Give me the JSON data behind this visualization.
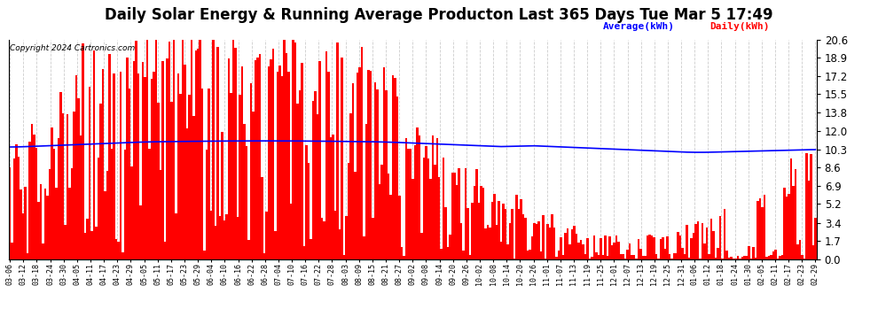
{
  "title": "Daily Solar Energy & Running Average Producton Last 365 Days Tue Mar 5 17:49",
  "copyright": "Copyright 2024 Cartronics.com",
  "ylabel_right_ticks": [
    0.0,
    1.7,
    3.4,
    5.2,
    6.9,
    8.6,
    10.3,
    12.0,
    13.8,
    15.5,
    17.2,
    18.9,
    20.6
  ],
  "ylim": [
    0.0,
    20.6
  ],
  "legend_avg_label": "Average(kWh)",
  "legend_daily_label": "Daily(kWh)",
  "avg_color": "#0000ff",
  "daily_color": "#ff0000",
  "background_color": "#ffffff",
  "grid_color": "#aaaaaa",
  "title_fontsize": 12,
  "x_tick_labels": [
    "03-06",
    "03-12",
    "03-18",
    "03-24",
    "03-30",
    "04-05",
    "04-11",
    "04-17",
    "04-23",
    "04-29",
    "05-05",
    "05-11",
    "05-17",
    "05-23",
    "05-29",
    "06-04",
    "06-10",
    "06-16",
    "06-22",
    "06-28",
    "07-04",
    "07-10",
    "07-16",
    "07-22",
    "07-28",
    "08-03",
    "08-09",
    "08-15",
    "08-21",
    "08-27",
    "09-02",
    "09-08",
    "09-14",
    "09-20",
    "09-26",
    "10-02",
    "10-08",
    "10-14",
    "10-20",
    "10-26",
    "11-01",
    "11-07",
    "11-13",
    "11-19",
    "11-25",
    "12-01",
    "12-07",
    "12-13",
    "12-19",
    "12-25",
    "12-31",
    "01-06",
    "01-12",
    "01-18",
    "01-24",
    "01-30",
    "02-05",
    "02-11",
    "02-17",
    "02-23",
    "02-29"
  ],
  "avg_line_values": [
    10.5,
    10.52,
    10.54,
    10.56,
    10.58,
    10.6,
    10.62,
    10.65,
    10.68,
    10.7,
    10.72,
    10.74,
    10.76,
    10.78,
    10.8,
    10.82,
    10.84,
    10.86,
    10.88,
    10.9,
    10.92,
    10.94,
    10.95,
    10.96,
    10.97,
    10.98,
    10.99,
    11.0,
    11.01,
    11.02,
    11.03,
    11.04,
    11.05,
    11.06,
    11.07,
    11.07,
    11.07,
    11.07,
    11.07,
    11.07,
    11.06,
    11.05,
    11.04,
    11.03,
    11.02,
    11.01,
    11.0,
    10.99,
    10.98,
    10.97,
    10.96,
    10.95,
    10.94,
    10.93,
    10.92,
    10.91,
    10.9,
    10.89,
    10.88,
    10.87,
    10.86,
    10.84,
    10.82,
    10.8,
    10.78,
    10.76,
    10.74,
    10.72,
    10.7,
    10.68,
    10.66,
    10.64,
    10.62,
    10.6,
    10.58,
    10.56,
    10.54,
    10.52,
    10.5,
    10.48,
    10.46,
    10.44,
    10.42,
    10.4,
    10.38,
    10.36,
    10.34,
    10.32,
    10.3,
    10.28,
    10.26,
    10.24,
    10.22,
    10.2,
    10.18,
    10.16,
    10.14,
    10.12,
    10.1,
    10.08,
    10.06,
    10.04,
    10.02,
    10.0,
    9.98,
    9.96,
    9.94,
    9.92,
    9.9,
    9.88,
    9.87,
    9.86,
    9.85,
    9.84,
    9.83,
    9.82,
    9.82,
    9.82,
    9.82,
    9.82,
    9.83,
    9.84,
    9.85,
    9.86,
    9.87,
    9.88,
    9.89,
    9.9,
    9.91,
    9.92,
    9.93,
    9.94,
    9.95,
    9.96,
    9.97,
    9.98,
    9.99,
    10.0,
    10.01,
    10.02,
    10.03,
    10.04,
    10.05,
    10.06,
    10.07,
    10.08,
    10.09,
    10.1,
    10.11,
    10.12,
    10.13,
    10.14,
    10.15,
    10.16,
    10.17,
    10.18,
    10.19,
    10.2,
    10.21,
    10.22,
    10.23,
    10.24,
    10.25,
    10.26,
    10.27,
    10.28,
    10.29,
    10.3,
    10.3,
    10.3,
    10.3,
    10.3,
    10.3,
    10.3,
    10.3,
    10.3,
    10.3,
    10.3,
    10.3,
    10.3,
    10.3,
    10.3,
    10.3,
    10.3,
    10.3,
    10.3,
    10.3,
    10.3,
    10.3,
    10.3,
    10.3,
    10.3,
    10.3,
    10.28,
    10.26,
    10.24,
    10.22,
    10.2,
    10.18,
    10.16,
    10.14,
    10.12,
    10.1,
    10.08,
    10.06,
    10.04,
    10.02,
    10.0,
    9.98,
    9.96,
    9.94,
    9.92,
    9.9,
    9.88,
    9.86,
    9.84,
    9.82,
    9.8,
    9.78,
    9.76,
    9.74,
    9.72,
    9.7,
    9.68,
    9.66,
    9.64,
    9.62,
    9.6,
    9.58,
    9.56,
    9.54,
    9.52,
    9.5,
    9.48,
    9.46,
    9.44,
    9.42,
    9.4,
    9.38,
    9.36,
    9.34,
    9.32,
    9.3,
    9.28,
    9.26,
    9.24,
    9.22,
    9.2,
    9.18,
    9.16,
    9.14,
    9.12,
    9.1,
    9.08,
    9.06,
    9.04,
    9.02,
    9.0,
    8.98,
    8.96,
    8.94,
    8.92,
    8.9,
    8.88,
    8.87,
    8.87,
    8.87,
    8.87,
    8.87,
    8.87,
    8.87,
    8.87,
    8.87,
    8.87,
    8.87,
    8.87,
    8.87,
    8.87,
    8.87,
    8.87,
    8.87,
    8.87,
    8.87,
    8.87,
    8.87,
    8.87,
    8.87,
    8.87,
    8.87,
    8.87,
    8.87,
    8.87,
    8.87,
    8.87,
    8.87,
    8.87,
    8.87,
    8.87,
    8.87,
    8.87,
    8.87,
    8.87,
    8.87,
    8.87,
    8.87,
    8.87,
    8.87,
    8.87,
    8.87,
    8.87,
    8.87,
    8.87,
    8.87,
    8.87,
    8.87,
    8.87,
    8.87,
    8.87,
    8.87,
    8.87,
    8.87,
    8.87,
    8.87,
    8.87,
    8.87,
    8.87,
    8.87,
    8.87,
    8.87,
    8.87,
    8.87,
    8.87,
    8.87,
    8.87,
    8.87,
    8.87,
    8.87,
    8.87,
    8.87,
    8.87,
    8.87,
    8.87,
    8.87,
    8.87,
    8.87,
    8.87,
    8.87,
    8.87,
    8.87,
    8.87,
    8.87,
    8.87,
    8.87,
    8.87,
    8.87,
    8.87,
    8.87,
    8.87,
    8.87,
    8.87,
    8.87,
    8.87,
    8.87,
    8.87,
    8.87
  ]
}
